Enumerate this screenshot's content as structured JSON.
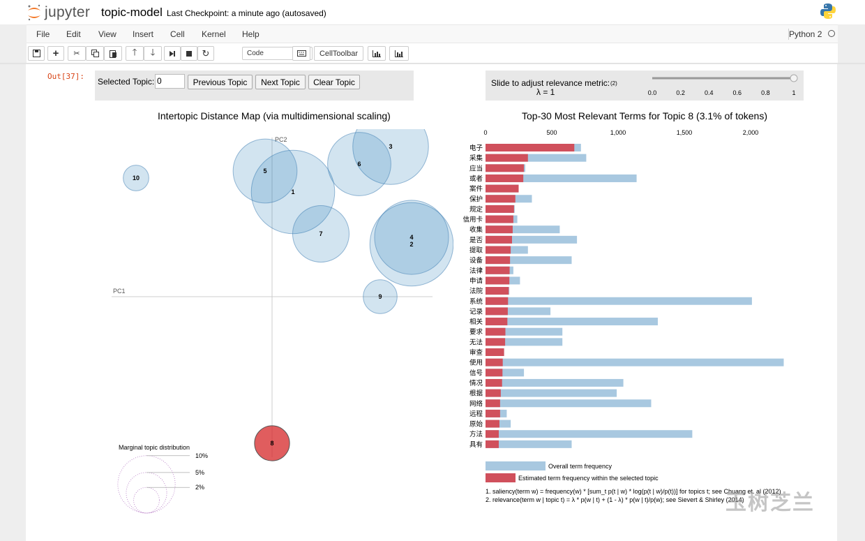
{
  "header": {
    "logo_text": "jupyter",
    "notebook_title": "topic-model",
    "checkpoint": "Last Checkpoint: a minute ago (autosaved)"
  },
  "menu": [
    "File",
    "Edit",
    "View",
    "Insert",
    "Cell",
    "Kernel",
    "Help"
  ],
  "kernel": "Python 2",
  "toolbar": {
    "cell_type": "Code",
    "celltoolbar_label": "CellToolbar"
  },
  "output_prompt": "Out[37]:",
  "controls": {
    "selected_topic_label": "Selected Topic:",
    "selected_topic_value": "0",
    "prev_button": "Previous Topic",
    "next_button": "Next Topic",
    "clear_button": "Clear Topic",
    "slider_label": "Slide to adjust relevance metric:",
    "slider_footnote": "(2)",
    "lambda_label": "λ = 1",
    "lambda_value": 1,
    "slider_ticks": [
      "0.0",
      "0.2",
      "0.4",
      "0.6",
      "0.8",
      "1"
    ]
  },
  "left_chart": {
    "title": "Intertopic Distance Map (via multidimensional scaling)",
    "pc1_label": "PC1",
    "pc2_label": "PC2",
    "topics": [
      {
        "id": "1",
        "pc1": 0.06,
        "pc2": 0.3,
        "size": 8.5,
        "selected": false
      },
      {
        "id": "2",
        "pc1": 0.4,
        "pc2": 0.15,
        "size": 8.5,
        "selected": false
      },
      {
        "id": "3",
        "pc1": 0.34,
        "pc2": 0.43,
        "size": 7.0,
        "selected": false
      },
      {
        "id": "4",
        "pc1": 0.4,
        "pc2": 0.17,
        "size": 6.7,
        "selected": false
      },
      {
        "id": "5",
        "pc1": -0.02,
        "pc2": 0.36,
        "size": 5.0,
        "selected": false
      },
      {
        "id": "6",
        "pc1": 0.25,
        "pc2": 0.38,
        "size": 4.9,
        "selected": false
      },
      {
        "id": "7",
        "pc1": 0.14,
        "pc2": 0.18,
        "size": 3.9,
        "selected": false
      },
      {
        "id": "8",
        "pc1": 0.0,
        "pc2": -0.42,
        "size": 1.5,
        "selected": true
      },
      {
        "id": "9",
        "pc1": 0.31,
        "pc2": 0.0,
        "size": 1.4,
        "selected": false
      },
      {
        "id": "10",
        "pc1": -0.39,
        "pc2": 0.34,
        "size": 0.8,
        "selected": false
      }
    ],
    "marginal_title": "Marginal topic distribution",
    "marginal_labels": [
      "2%",
      "5%",
      "10%"
    ]
  },
  "right_chart": {
    "title": "Top-30 Most Relevant Terms for Topic 8 (3.1% of tokens)",
    "axis_ticks": [
      0,
      500,
      1000,
      1500,
      2000
    ],
    "axis_tick_labels": [
      "0",
      "500",
      "1,000",
      "1,500",
      "2,000"
    ],
    "legend_overall": "Overall term frequency",
    "legend_estimated": "Estimated term frequency within the selected topic",
    "colors": {
      "overall": "#a8c8e0",
      "estimated": "#d0505c"
    },
    "footnote1": "1. saliency(term w) = frequency(w) * [sum_t p(t | w) * log(p(t | w)/p(t))] for topics t; see Chuang et. al (2012)",
    "footnote2": "2. relevance(term w | topic t) = λ * p(w | t) + (1 - λ) * p(w | t)/p(w); see Sievert & Shirley (2014)"
  },
  "chart_data": {
    "type": "bar",
    "title": "Top-30 Most Relevant Terms for Topic 8 (3.1% of tokens)",
    "categories": [
      "电子",
      "采集",
      "应当",
      "或者",
      "案件",
      "保护",
      "规定",
      "信用卡",
      "收集",
      "是否",
      "提取",
      "设备",
      "法律",
      "申请",
      "法院",
      "系统",
      "记录",
      "相关",
      "要求",
      "无法",
      "审查",
      "使用",
      "信号",
      "情况",
      "根据",
      "网络",
      "远程",
      "原始",
      "方法",
      "具有"
    ],
    "series": [
      {
        "name": "Overall term frequency",
        "values": [
          720,
          760,
          300,
          1140,
          250,
          350,
          220,
          240,
          560,
          690,
          320,
          650,
          210,
          260,
          180,
          2010,
          490,
          1300,
          580,
          580,
          140,
          2250,
          290,
          1040,
          990,
          1250,
          160,
          190,
          1560,
          650
        ]
      },
      {
        "name": "Estimated term frequency within the selected topic",
        "values": [
          670,
          320,
          290,
          285,
          250,
          225,
          215,
          210,
          205,
          200,
          190,
          185,
          182,
          180,
          175,
          170,
          168,
          165,
          150,
          148,
          140,
          130,
          128,
          125,
          115,
          110,
          110,
          105,
          100,
          100
        ]
      }
    ],
    "xlim": [
      0,
      2300
    ]
  },
  "watermark": "玉树芝兰"
}
